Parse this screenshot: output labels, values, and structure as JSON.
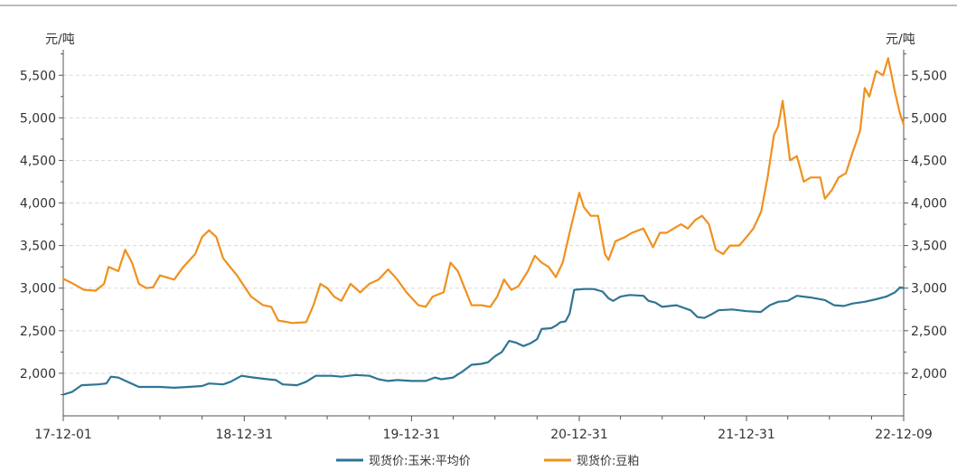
{
  "chart_data": {
    "type": "line",
    "left_unit": "元/吨",
    "right_unit": "元/吨",
    "ylim": [
      1500,
      5800
    ],
    "yticks": [
      2000,
      2500,
      3000,
      3500,
      4000,
      4500,
      5000,
      5500
    ],
    "ytick_labels": [
      "2,000",
      "2,500",
      "3,000",
      "3,500",
      "4,000",
      "4,500",
      "5,000",
      "5,500"
    ],
    "x_range": [
      "2017-12-01",
      "2022-12-09"
    ],
    "xtick_dates": [
      "2017-12-01",
      "2018-12-31",
      "2019-12-31",
      "2020-12-31",
      "2021-12-31",
      "2022-12-09"
    ],
    "xtick_labels": [
      "17-12-01",
      "18-12-31",
      "19-12-31",
      "20-12-31",
      "21-12-31",
      "22-12-09"
    ],
    "grid": "horizontal dashed",
    "legend_position": "bottom-center",
    "series": [
      {
        "name": "现货价:玉米:平均价",
        "color": "#2e7595",
        "points": [
          [
            "2017-12-01",
            1750
          ],
          [
            "2017-12-20",
            1780
          ],
          [
            "2018-01-10",
            1860
          ],
          [
            "2018-02-15",
            1870
          ],
          [
            "2018-03-05",
            1880
          ],
          [
            "2018-03-15",
            1960
          ],
          [
            "2018-03-31",
            1950
          ],
          [
            "2018-04-20",
            1900
          ],
          [
            "2018-05-15",
            1840
          ],
          [
            "2018-06-30",
            1840
          ],
          [
            "2018-07-31",
            1830
          ],
          [
            "2018-08-31",
            1840
          ],
          [
            "2018-09-30",
            1850
          ],
          [
            "2018-10-15",
            1880
          ],
          [
            "2018-11-15",
            1870
          ],
          [
            "2018-12-01",
            1900
          ],
          [
            "2018-12-25",
            1970
          ],
          [
            "2019-01-20",
            1950
          ],
          [
            "2019-02-20",
            1930
          ],
          [
            "2019-03-10",
            1920
          ],
          [
            "2019-03-25",
            1870
          ],
          [
            "2019-04-25",
            1860
          ],
          [
            "2019-05-15",
            1900
          ],
          [
            "2019-06-05",
            1970
          ],
          [
            "2019-07-10",
            1970
          ],
          [
            "2019-07-31",
            1960
          ],
          [
            "2019-08-31",
            1980
          ],
          [
            "2019-09-30",
            1970
          ],
          [
            "2019-10-20",
            1930
          ],
          [
            "2019-11-10",
            1910
          ],
          [
            "2019-11-30",
            1920
          ],
          [
            "2019-12-31",
            1910
          ],
          [
            "2020-01-31",
            1910
          ],
          [
            "2020-02-20",
            1950
          ],
          [
            "2020-03-05",
            1930
          ],
          [
            "2020-03-31",
            1950
          ],
          [
            "2020-04-20",
            2020
          ],
          [
            "2020-05-10",
            2100
          ],
          [
            "2020-05-31",
            2110
          ],
          [
            "2020-06-15",
            2130
          ],
          [
            "2020-06-30",
            2200
          ],
          [
            "2020-07-15",
            2250
          ],
          [
            "2020-07-31",
            2380
          ],
          [
            "2020-08-15",
            2360
          ],
          [
            "2020-08-31",
            2320
          ],
          [
            "2020-09-15",
            2350
          ],
          [
            "2020-09-30",
            2400
          ],
          [
            "2020-10-10",
            2520
          ],
          [
            "2020-10-31",
            2530
          ],
          [
            "2020-11-10",
            2560
          ],
          [
            "2020-11-20",
            2600
          ],
          [
            "2020-12-01",
            2610
          ],
          [
            "2020-12-10",
            2700
          ],
          [
            "2020-12-20",
            2980
          ],
          [
            "2021-01-10",
            2990
          ],
          [
            "2021-01-31",
            2990
          ],
          [
            "2021-02-20",
            2960
          ],
          [
            "2021-03-05",
            2880
          ],
          [
            "2021-03-15",
            2850
          ],
          [
            "2021-03-31",
            2900
          ],
          [
            "2021-04-20",
            2920
          ],
          [
            "2021-05-20",
            2910
          ],
          [
            "2021-05-31",
            2850
          ],
          [
            "2021-06-15",
            2830
          ],
          [
            "2021-06-30",
            2780
          ],
          [
            "2021-07-31",
            2800
          ],
          [
            "2021-08-31",
            2740
          ],
          [
            "2021-09-15",
            2660
          ],
          [
            "2021-09-30",
            2650
          ],
          [
            "2021-10-15",
            2690
          ],
          [
            "2021-10-31",
            2740
          ],
          [
            "2021-11-30",
            2750
          ],
          [
            "2021-12-31",
            2730
          ],
          [
            "2022-01-31",
            2720
          ],
          [
            "2022-02-20",
            2800
          ],
          [
            "2022-03-10",
            2840
          ],
          [
            "2022-03-31",
            2850
          ],
          [
            "2022-04-20",
            2910
          ],
          [
            "2022-05-20",
            2890
          ],
          [
            "2022-06-20",
            2860
          ],
          [
            "2022-07-10",
            2800
          ],
          [
            "2022-07-31",
            2790
          ],
          [
            "2022-08-20",
            2820
          ],
          [
            "2022-09-15",
            2840
          ],
          [
            "2022-10-10",
            2870
          ],
          [
            "2022-11-01",
            2900
          ],
          [
            "2022-11-20",
            2950
          ],
          [
            "2022-12-01",
            3010
          ],
          [
            "2022-12-09",
            3000
          ]
        ]
      },
      {
        "name": "现货价:豆粕",
        "color": "#f0901e",
        "points": [
          [
            "2017-12-01",
            3110
          ],
          [
            "2017-12-20",
            3060
          ],
          [
            "2018-01-15",
            2980
          ],
          [
            "2018-02-10",
            2970
          ],
          [
            "2018-02-28",
            3050
          ],
          [
            "2018-03-10",
            3250
          ],
          [
            "2018-03-31",
            3200
          ],
          [
            "2018-04-15",
            3450
          ],
          [
            "2018-04-30",
            3300
          ],
          [
            "2018-05-15",
            3050
          ],
          [
            "2018-05-31",
            3000
          ],
          [
            "2018-06-15",
            3010
          ],
          [
            "2018-06-30",
            3150
          ],
          [
            "2018-07-31",
            3100
          ],
          [
            "2018-08-20",
            3250
          ],
          [
            "2018-09-15",
            3400
          ],
          [
            "2018-09-30",
            3600
          ],
          [
            "2018-10-15",
            3680
          ],
          [
            "2018-10-31",
            3600
          ],
          [
            "2018-11-15",
            3350
          ],
          [
            "2018-12-15",
            3150
          ],
          [
            "2019-01-15",
            2900
          ],
          [
            "2019-02-10",
            2800
          ],
          [
            "2019-02-28",
            2780
          ],
          [
            "2019-03-15",
            2620
          ],
          [
            "2019-04-15",
            2590
          ],
          [
            "2019-05-15",
            2600
          ],
          [
            "2019-05-31",
            2800
          ],
          [
            "2019-06-15",
            3050
          ],
          [
            "2019-06-30",
            3000
          ],
          [
            "2019-07-15",
            2900
          ],
          [
            "2019-07-31",
            2850
          ],
          [
            "2019-08-20",
            3050
          ],
          [
            "2019-09-10",
            2950
          ],
          [
            "2019-09-30",
            3050
          ],
          [
            "2019-10-20",
            3100
          ],
          [
            "2019-11-10",
            3220
          ],
          [
            "2019-11-30",
            3100
          ],
          [
            "2019-12-20",
            2950
          ],
          [
            "2020-01-15",
            2800
          ],
          [
            "2020-01-31",
            2780
          ],
          [
            "2020-02-15",
            2900
          ],
          [
            "2020-03-10",
            2950
          ],
          [
            "2020-03-25",
            3300
          ],
          [
            "2020-04-10",
            3200
          ],
          [
            "2020-04-25",
            3000
          ],
          [
            "2020-05-10",
            2800
          ],
          [
            "2020-05-31",
            2800
          ],
          [
            "2020-06-20",
            2780
          ],
          [
            "2020-07-05",
            2900
          ],
          [
            "2020-07-20",
            3100
          ],
          [
            "2020-08-05",
            2980
          ],
          [
            "2020-08-20",
            3020
          ],
          [
            "2020-09-10",
            3200
          ],
          [
            "2020-09-25",
            3380
          ],
          [
            "2020-10-10",
            3300
          ],
          [
            "2020-10-25",
            3250
          ],
          [
            "2020-11-10",
            3130
          ],
          [
            "2020-11-25",
            3300
          ],
          [
            "2020-12-10",
            3650
          ],
          [
            "2020-12-31",
            4120
          ],
          [
            "2021-01-10",
            3950
          ],
          [
            "2021-01-25",
            3850
          ],
          [
            "2021-02-10",
            3850
          ],
          [
            "2021-02-25",
            3400
          ],
          [
            "2021-03-05",
            3330
          ],
          [
            "2021-03-20",
            3550
          ],
          [
            "2021-04-10",
            3600
          ],
          [
            "2021-04-25",
            3650
          ],
          [
            "2021-05-20",
            3700
          ],
          [
            "2021-06-10",
            3480
          ],
          [
            "2021-06-25",
            3650
          ],
          [
            "2021-07-10",
            3650
          ],
          [
            "2021-07-25",
            3700
          ],
          [
            "2021-08-10",
            3750
          ],
          [
            "2021-08-25",
            3700
          ],
          [
            "2021-09-10",
            3800
          ],
          [
            "2021-09-25",
            3850
          ],
          [
            "2021-10-10",
            3750
          ],
          [
            "2021-10-25",
            3450
          ],
          [
            "2021-11-10",
            3400
          ],
          [
            "2021-11-25",
            3500
          ],
          [
            "2021-12-15",
            3500
          ],
          [
            "2021-12-31",
            3600
          ],
          [
            "2022-01-15",
            3700
          ],
          [
            "2022-02-01",
            3900
          ],
          [
            "2022-02-15",
            4300
          ],
          [
            "2022-03-01",
            4800
          ],
          [
            "2022-03-10",
            4900
          ],
          [
            "2022-03-20",
            5200
          ],
          [
            "2022-04-05",
            4500
          ],
          [
            "2022-04-20",
            4550
          ],
          [
            "2022-05-05",
            4250
          ],
          [
            "2022-05-20",
            4300
          ],
          [
            "2022-06-10",
            4300
          ],
          [
            "2022-06-20",
            4050
          ],
          [
            "2022-07-05",
            4150
          ],
          [
            "2022-07-20",
            4300
          ],
          [
            "2022-08-05",
            4350
          ],
          [
            "2022-08-20",
            4600
          ],
          [
            "2022-09-05",
            4850
          ],
          [
            "2022-09-15",
            5350
          ],
          [
            "2022-09-25",
            5250
          ],
          [
            "2022-10-10",
            5550
          ],
          [
            "2022-10-25",
            5500
          ],
          [
            "2022-11-05",
            5700
          ],
          [
            "2022-11-20",
            5300
          ],
          [
            "2022-12-01",
            5050
          ],
          [
            "2022-12-09",
            4920
          ]
        ]
      }
    ]
  }
}
